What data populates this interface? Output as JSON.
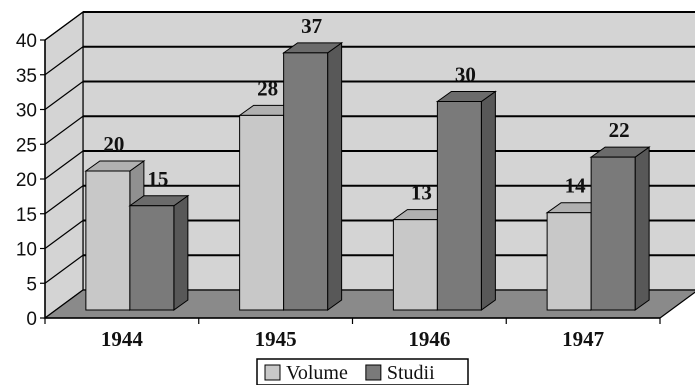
{
  "chart_data": {
    "type": "bar",
    "style": "3d-clustered-column",
    "categories": [
      "1944",
      "1945",
      "1946",
      "1947"
    ],
    "series": [
      {
        "name": "Volume",
        "values": [
          20,
          28,
          13,
          14
        ],
        "color": "#c8c8c8"
      },
      {
        "name": "Studii",
        "values": [
          15,
          37,
          30,
          22
        ],
        "color": "#7a7a7a"
      }
    ],
    "ylim": [
      0,
      40
    ],
    "yticks": [
      0,
      5,
      10,
      15,
      20,
      25,
      30,
      35,
      40
    ],
    "grid": true,
    "legend_position": "bottom",
    "colors": {
      "back_wall": "#d4d4d4",
      "floor": "#8a8a8a",
      "gridline": "#000000"
    }
  }
}
